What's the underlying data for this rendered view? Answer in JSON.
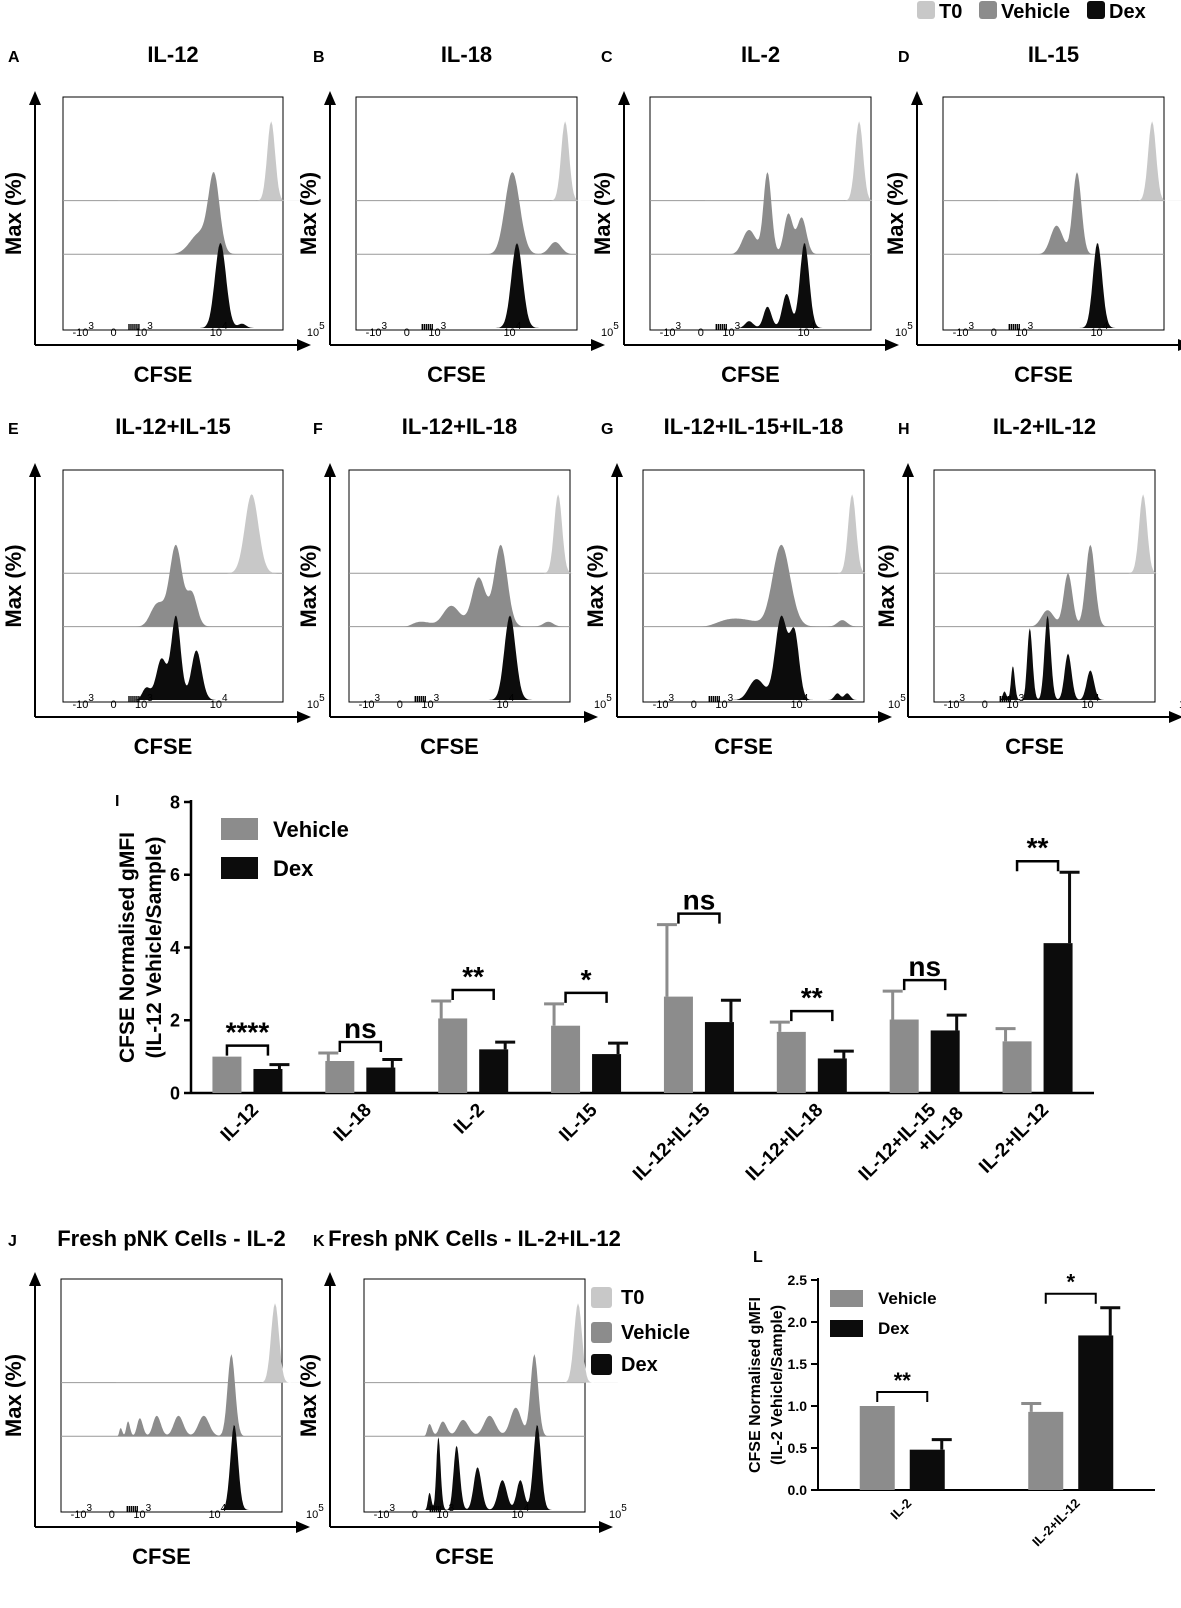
{
  "colors": {
    "t0": "#c8c8c8",
    "vehicle": "#8c8c8c",
    "dex": "#0c0c0c",
    "axis": "#000000"
  },
  "top_legend": [
    {
      "label": "T0",
      "key": "t0"
    },
    {
      "label": "Vehicle",
      "key": "vehicle"
    },
    {
      "label": "Dex",
      "key": "dex"
    }
  ],
  "histogram_axes": {
    "ylabel": "Max (%)",
    "xlabel": "CFSE",
    "xticks": [
      {
        "base": "-10",
        "exp": "3",
        "value": -1000
      },
      {
        "base": "0",
        "exp": "",
        "value": 0
      },
      {
        "base": "10",
        "exp": "3",
        "value": 1000
      },
      {
        "base": "10",
        "exp": "4",
        "value": 10000
      },
      {
        "base": "10",
        "exp": "5",
        "value": 100000
      }
    ]
  },
  "histograms": [
    {
      "letter": "A",
      "title": "IL-12",
      "t0": [
        [
          4.55,
          1.0,
          0.04
        ]
      ],
      "vehicle": [
        [
          3.95,
          1.0,
          0.06
        ],
        [
          3.8,
          0.3,
          0.12
        ]
      ],
      "dex": [
        [
          4.02,
          1.0,
          0.06
        ],
        [
          4.25,
          0.05,
          0.04
        ]
      ]
    },
    {
      "letter": "B",
      "title": "IL-18",
      "t0": [
        [
          4.55,
          1.0,
          0.04
        ]
      ],
      "vehicle": [
        [
          4.0,
          1.0,
          0.08
        ],
        [
          4.45,
          0.15,
          0.06
        ]
      ],
      "dex": [
        [
          4.05,
          1.0,
          0.06
        ]
      ]
    },
    {
      "letter": "C",
      "title": "IL-2",
      "t0": [
        [
          4.55,
          1.0,
          0.04
        ]
      ],
      "vehicle": [
        [
          3.55,
          1.0,
          0.05
        ],
        [
          3.8,
          0.5,
          0.05
        ],
        [
          3.95,
          0.45,
          0.05
        ],
        [
          3.3,
          0.3,
          0.1
        ]
      ],
      "dex": [
        [
          3.98,
          1.0,
          0.05
        ],
        [
          3.78,
          0.4,
          0.05
        ],
        [
          3.55,
          0.25,
          0.05
        ],
        [
          3.3,
          0.08,
          0.06
        ]
      ]
    },
    {
      "letter": "D",
      "title": "IL-15",
      "t0": [
        [
          4.55,
          1.0,
          0.04
        ]
      ],
      "vehicle": [
        [
          3.75,
          1.0,
          0.05
        ],
        [
          3.5,
          0.35,
          0.08
        ]
      ],
      "dex": [
        [
          3.98,
          1.0,
          0.05
        ]
      ]
    },
    {
      "letter": "E",
      "title": "IL-12+IL-15",
      "t0": [
        [
          4.35,
          1.0,
          0.07
        ]
      ],
      "vehicle": [
        [
          3.5,
          1.0,
          0.08
        ],
        [
          3.7,
          0.4,
          0.06
        ],
        [
          3.25,
          0.3,
          0.12
        ]
      ],
      "dex": [
        [
          3.5,
          1.0,
          0.06
        ],
        [
          3.75,
          0.6,
          0.06
        ],
        [
          3.3,
          0.5,
          0.08
        ],
        [
          3.05,
          0.15,
          0.08
        ]
      ]
    },
    {
      "letter": "F",
      "title": "IL-12+IL-18",
      "t0": [
        [
          4.55,
          1.0,
          0.04
        ]
      ],
      "vehicle": [
        [
          3.95,
          1.0,
          0.07
        ],
        [
          3.7,
          0.6,
          0.08
        ],
        [
          3.35,
          0.25,
          0.12
        ],
        [
          2.8,
          0.06,
          0.25
        ],
        [
          4.45,
          0.06,
          0.05
        ]
      ],
      "dex": [
        [
          4.05,
          1.0,
          0.06
        ]
      ]
    },
    {
      "letter": "G",
      "title": "IL-12+IL-15+IL-18",
      "t0": [
        [
          4.55,
          1.0,
          0.04
        ]
      ],
      "vehicle": [
        [
          3.8,
          1.0,
          0.1
        ],
        [
          4.45,
          0.08,
          0.05
        ],
        [
          3.2,
          0.1,
          0.3
        ]
      ],
      "dex": [
        [
          3.8,
          1.0,
          0.07
        ],
        [
          3.95,
          0.75,
          0.05
        ],
        [
          3.5,
          0.25,
          0.1
        ],
        [
          4.4,
          0.08,
          0.03
        ],
        [
          4.5,
          0.08,
          0.03
        ]
      ]
    },
    {
      "letter": "H",
      "title": "IL-2+IL-12",
      "t0": [
        [
          4.55,
          1.0,
          0.04
        ]
      ],
      "vehicle": [
        [
          4.0,
          1.0,
          0.05
        ],
        [
          3.75,
          0.65,
          0.05
        ],
        [
          3.5,
          0.2,
          0.08
        ]
      ],
      "dex": [
        [
          3.5,
          1.0,
          0.04
        ],
        [
          3.25,
          0.85,
          0.04
        ],
        [
          3.75,
          0.55,
          0.04
        ],
        [
          4.0,
          0.35,
          0.04
        ],
        [
          2.95,
          0.4,
          0.04
        ],
        [
          2.75,
          0.1,
          0.05
        ]
      ]
    },
    {
      "letter": "J",
      "title": "Fresh pNK Cells - IL-2",
      "t0": [
        [
          4.6,
          1.0,
          0.04
        ]
      ],
      "vehicle": [
        [
          4.15,
          1.0,
          0.04
        ],
        [
          3.85,
          0.25,
          0.06
        ],
        [
          3.55,
          0.25,
          0.06
        ],
        [
          3.25,
          0.25,
          0.06
        ],
        [
          2.95,
          0.22,
          0.06
        ],
        [
          2.65,
          0.18,
          0.06
        ],
        [
          2.35,
          0.1,
          0.08
        ]
      ],
      "dex": [
        [
          4.18,
          1.0,
          0.04
        ]
      ]
    },
    {
      "letter": "K",
      "title": "Fresh pNK Cells - IL-2+IL-12",
      "t0": [
        [
          4.6,
          1.0,
          0.04
        ]
      ],
      "vehicle": [
        [
          4.15,
          1.0,
          0.04
        ],
        [
          3.95,
          0.35,
          0.06
        ],
        [
          3.65,
          0.25,
          0.07
        ],
        [
          3.3,
          0.2,
          0.08
        ],
        [
          2.95,
          0.18,
          0.08
        ],
        [
          2.6,
          0.15,
          0.08
        ]
      ],
      "dex": [
        [
          4.18,
          1.0,
          0.04
        ],
        [
          2.85,
          0.85,
          0.05
        ],
        [
          3.2,
          0.75,
          0.05
        ],
        [
          3.5,
          0.5,
          0.05
        ],
        [
          3.8,
          0.35,
          0.05
        ],
        [
          4.0,
          0.35,
          0.04
        ],
        [
          2.6,
          0.2,
          0.06
        ]
      ]
    }
  ],
  "panel_k_legend": [
    {
      "label": "T0",
      "key": "t0"
    },
    {
      "label": "Vehicle",
      "key": "vehicle"
    },
    {
      "label": "Dex",
      "key": "dex"
    }
  ],
  "chart_data": [
    {
      "type": "bar",
      "panel": "I",
      "title": "",
      "xlabel": "",
      "ylabel": "CFSE Normalised gMFI",
      "ylabel2": "(IL-12 Vehicle/Sample)",
      "ylim": [
        0,
        8
      ],
      "yticks": [
        "0",
        "2",
        "4",
        "6",
        "8"
      ],
      "legend_position": "top-left",
      "categories": [
        "IL-12",
        "IL-18",
        "IL-2",
        "IL-15",
        "IL-12+IL-15",
        "IL-12+IL-18",
        "IL-12+IL-15|+IL-18",
        "IL-2+IL-12"
      ],
      "series": [
        {
          "name": "Vehicle",
          "key": "vehicle",
          "values": [
            1.0,
            0.88,
            2.05,
            1.85,
            2.65,
            1.68,
            2.02,
            1.42
          ],
          "errors": [
            0.0,
            0.22,
            0.48,
            0.6,
            1.98,
            0.27,
            0.78,
            0.35
          ]
        },
        {
          "name": "Dex",
          "key": "dex",
          "values": [
            0.66,
            0.7,
            1.2,
            1.07,
            1.95,
            0.95,
            1.72,
            4.12
          ],
          "errors": [
            0.12,
            0.22,
            0.2,
            0.3,
            0.6,
            0.2,
            0.42,
            1.95
          ]
        }
      ],
      "significance": [
        "****",
        "ns",
        "**",
        "*",
        "ns",
        "**",
        "ns",
        "**"
      ]
    },
    {
      "type": "bar",
      "panel": "L",
      "title": "",
      "xlabel": "",
      "ylabel": "CFSE Normalised gMFI",
      "ylabel2": "(IL-2 Vehicle/Sample)",
      "ylim": [
        0,
        2.5
      ],
      "yticks": [
        "0.0",
        "0.5",
        "1.0",
        "1.5",
        "2.0",
        "2.5"
      ],
      "legend_position": "top-left",
      "categories": [
        "IL-2",
        "IL-2+IL-12"
      ],
      "series": [
        {
          "name": "Vehicle",
          "key": "vehicle",
          "values": [
            1.0,
            0.93
          ],
          "errors": [
            0.0,
            0.1
          ]
        },
        {
          "name": "Dex",
          "key": "dex",
          "values": [
            0.48,
            1.84
          ],
          "errors": [
            0.12,
            0.33
          ]
        }
      ],
      "significance": [
        "**",
        "*"
      ]
    }
  ]
}
